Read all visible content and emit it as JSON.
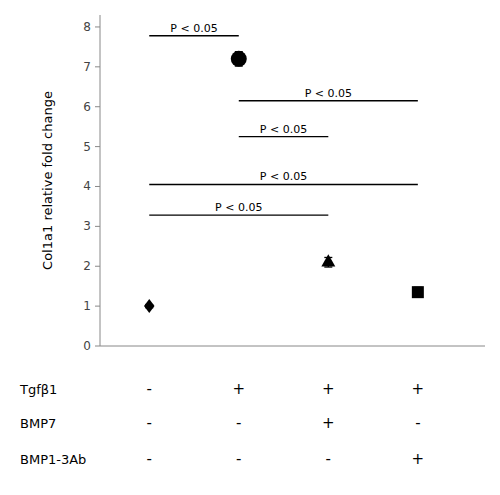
{
  "chart_data": {
    "type": "scatter",
    "ylabel": "Col1a1 relative fold change",
    "x": [
      1,
      2,
      3,
      4
    ],
    "values": [
      1.0,
      7.2,
      2.1,
      1.35
    ],
    "errors": [
      0.04,
      0.18,
      0.12,
      0.12
    ],
    "markers": [
      "diamond",
      "circle",
      "triangle",
      "square"
    ],
    "color": "#000000",
    "xlim": [
      0.45,
      4.75
    ],
    "xticks": [],
    "ylim": [
      0,
      8.3
    ],
    "yticks": [
      0,
      1,
      2,
      3,
      4,
      5,
      6,
      7,
      8
    ],
    "tick_labels": "y",
    "grid": false,
    "annotations": [
      {
        "label": "P < 0.05",
        "x1": 1,
        "x2": 2,
        "y": 7.78
      },
      {
        "label": "P < 0.05",
        "x1": 2,
        "x2": 4,
        "y": 6.15
      },
      {
        "label": "P < 0.05",
        "x1": 2,
        "x2": 3,
        "y": 5.25
      },
      {
        "label": "P < 0.05",
        "x1": 1,
        "x2": 4,
        "y": 4.05
      },
      {
        "label": "P < 0.05",
        "x1": 1,
        "x2": 3,
        "y": 3.28
      }
    ],
    "table": [
      {
        "label": "Tgfβ1",
        "signs": [
          "-",
          "+",
          "+",
          "+"
        ]
      },
      {
        "label": "BMP7",
        "signs": [
          "-",
          "-",
          "+",
          "-"
        ]
      },
      {
        "label": "BMP1-3Ab",
        "signs": [
          "-",
          "-",
          "-",
          "+"
        ]
      }
    ]
  }
}
